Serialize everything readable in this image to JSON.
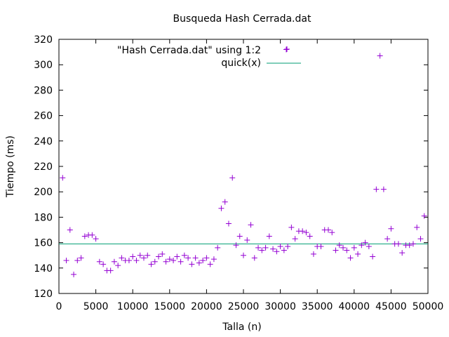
{
  "chart_data": {
    "type": "scatter",
    "title": "Busqueda Hash Cerrada.dat",
    "xlabel": "Talla (n)",
    "ylabel": "Tiempo (ms)",
    "xlim": [
      0,
      50000
    ],
    "ylim": [
      120,
      320
    ],
    "xticks": [
      0,
      5000,
      10000,
      15000,
      20000,
      25000,
      30000,
      35000,
      40000,
      45000,
      50000
    ],
    "yticks": [
      120,
      140,
      160,
      180,
      200,
      220,
      240,
      260,
      280,
      300,
      320
    ],
    "grid": false,
    "legend_position": "top-right",
    "series": [
      {
        "name": "\"Hash Cerrada.dat\" using 1:2",
        "marker": "+",
        "color": "#9400d3",
        "x": [
          500,
          1000,
          1500,
          2000,
          2500,
          3000,
          3500,
          4000,
          4500,
          5000,
          5500,
          6000,
          6500,
          7000,
          7500,
          8000,
          8500,
          9000,
          9500,
          10000,
          10500,
          11000,
          11500,
          12000,
          12500,
          13000,
          13500,
          14000,
          14500,
          15000,
          15500,
          16000,
          16500,
          17000,
          17500,
          18000,
          18500,
          19000,
          19500,
          20000,
          20500,
          21000,
          21500,
          22000,
          22500,
          23000,
          23500,
          24000,
          24500,
          25000,
          25500,
          26000,
          26500,
          27000,
          27500,
          28000,
          28500,
          29000,
          29500,
          30000,
          30500,
          31000,
          31500,
          32000,
          32500,
          33000,
          33500,
          34000,
          34500,
          35000,
          35500,
          36000,
          36500,
          37000,
          37500,
          38000,
          38500,
          39000,
          39500,
          40000,
          40500,
          41000,
          41500,
          42000,
          42500,
          43000,
          43500,
          44000,
          44500,
          45000,
          45500,
          46000,
          46500,
          47000,
          47500,
          48000,
          48500,
          49000,
          49500
        ],
        "y": [
          211,
          146,
          170,
          135,
          146,
          148,
          165,
          166,
          166,
          163,
          145,
          143,
          138,
          138,
          145,
          142,
          148,
          146,
          146,
          149,
          146,
          150,
          148,
          150,
          143,
          145,
          149,
          151,
          145,
          147,
          146,
          149,
          145,
          150,
          148,
          143,
          148,
          144,
          146,
          148,
          143,
          147,
          156,
          187,
          192,
          175,
          211,
          158,
          165,
          150,
          162,
          174,
          148,
          156,
          154,
          156,
          165,
          155,
          153,
          157,
          154,
          157,
          172,
          163,
          169,
          169,
          168,
          165,
          151,
          157,
          157,
          170,
          170,
          168,
          154,
          158,
          156,
          154,
          148,
          156,
          151,
          158,
          160,
          157,
          149,
          202,
          307,
          202,
          163,
          171,
          159,
          159,
          152,
          158,
          158,
          159,
          172,
          163,
          181
        ]
      },
      {
        "name": "quick(x)",
        "color": "#009e73",
        "y_constant": 159
      }
    ],
    "extra_points": [
      {
        "x": 30800,
        "y": 312
      }
    ]
  }
}
